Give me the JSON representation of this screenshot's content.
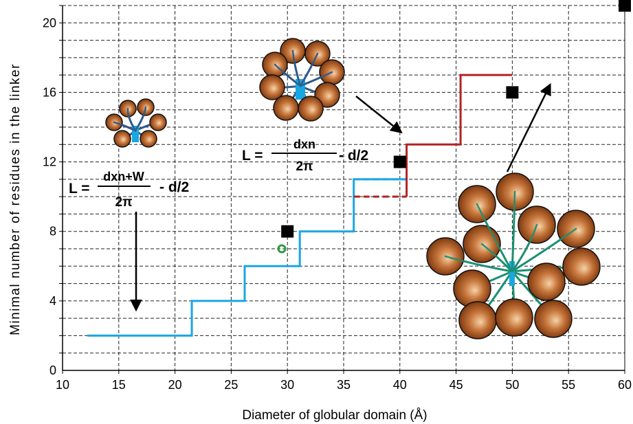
{
  "chart_data": {
    "type": "line",
    "xlabel": "Diameter of globular domain (Å)",
    "ylabel": "Minimal number of residues in the linker",
    "xlim": [
      10,
      60
    ],
    "ylim": [
      0,
      21
    ],
    "x_ticks": [
      "10",
      "15",
      "20",
      "25",
      "30",
      "35",
      "40",
      "45",
      "50",
      "55",
      "60"
    ],
    "y_ticks": [
      "0",
      "4",
      "8",
      "12",
      "16",
      "20"
    ],
    "grid": true,
    "series": [
      {
        "color": "#1aa6e2",
        "style": "solid",
        "points": [
          [
            12.2,
            2
          ],
          [
            21.5,
            2
          ],
          [
            21.5,
            4
          ],
          [
            26.2,
            4
          ],
          [
            26.2,
            6
          ],
          [
            31.1,
            6
          ],
          [
            31.1,
            8
          ],
          [
            35.9,
            8
          ],
          [
            35.9,
            11
          ],
          [
            40.6,
            11
          ]
        ]
      },
      {
        "color": "#1aa6e2",
        "style": "dashed",
        "points": [
          [
            35.9,
            11
          ],
          [
            40.6,
            11
          ]
        ]
      },
      {
        "color": "#b22222",
        "style": "dashed",
        "points": [
          [
            35.9,
            10
          ],
          [
            40.6,
            10
          ]
        ]
      },
      {
        "color": "#b22222",
        "style": "solid",
        "points": [
          [
            40.6,
            10
          ],
          [
            40.6,
            13
          ],
          [
            45.4,
            13
          ],
          [
            45.4,
            17
          ],
          [
            50.0,
            17
          ]
        ]
      }
    ],
    "markers_square": [
      [
        30,
        8
      ],
      [
        40,
        12
      ],
      [
        50,
        16
      ],
      [
        60,
        21
      ]
    ],
    "markers_circle": [
      [
        29.5,
        7
      ]
    ],
    "formulas": [
      {
        "lhs": "L =",
        "numerator": "dxn+W",
        "denominator": "2π",
        "tail": "- d/2"
      },
      {
        "lhs": "L =",
        "numerator": "dxn",
        "denominator": "2π",
        "tail": "- d/2"
      }
    ],
    "colors": {
      "cyan": "#1aa6e2",
      "red": "#b22222",
      "marker": "#000000",
      "circle_marker": "#2e9b46",
      "sphere": "#b5652e",
      "linker_blue": "#2f5a8a",
      "linker_green": "#1a9070",
      "core": "#1aa6e2"
    }
  }
}
